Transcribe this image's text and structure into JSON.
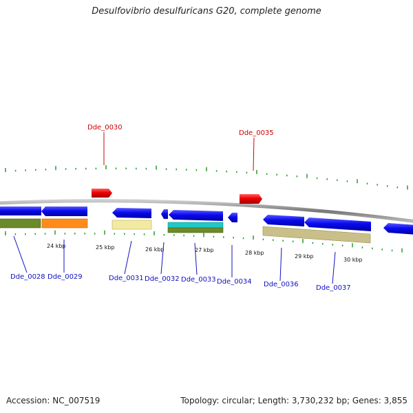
{
  "title": "Desulfovibrio desulfuricans G20, complete genome",
  "footer": {
    "accession": "Accession: NC_007519",
    "summary": "Topology: circular; Length: 3,730,232 bp; Genes: 3,855"
  },
  "colors": {
    "cds": "#0a0af0",
    "highlight": "#ee0000",
    "backbone": "#888888",
    "tick": "#2a9a2a",
    "label_default": "#1010c0",
    "label_highlight": "#cc0000"
  },
  "tick_labels": [
    "24 kbp",
    "25 kbp",
    "26 kbp",
    "27 kbp",
    "28 kbp",
    "29 kbp",
    "30 kbp"
  ],
  "genes": [
    {
      "name": "Dde_0028",
      "color": "#1010c0"
    },
    {
      "name": "Dde_0029",
      "color": "#1010c0"
    },
    {
      "name": "Dde_0030",
      "color": "#cc0000"
    },
    {
      "name": "Dde_0031",
      "color": "#1010c0"
    },
    {
      "name": "Dde_0032",
      "color": "#1010c0"
    },
    {
      "name": "Dde_0033",
      "color": "#1010c0"
    },
    {
      "name": "Dde_0034",
      "color": "#1010c0"
    },
    {
      "name": "Dde_0035",
      "color": "#cc0000"
    },
    {
      "name": "Dde_0036",
      "color": "#1010c0"
    },
    {
      "name": "Dde_0037",
      "color": "#1010c0"
    }
  ],
  "domain_colors": [
    "#6b8a2a",
    "#ff8c1a",
    "#f2eaa0",
    "#20c8c8",
    "#6b8a2a",
    "#c8c088"
  ]
}
